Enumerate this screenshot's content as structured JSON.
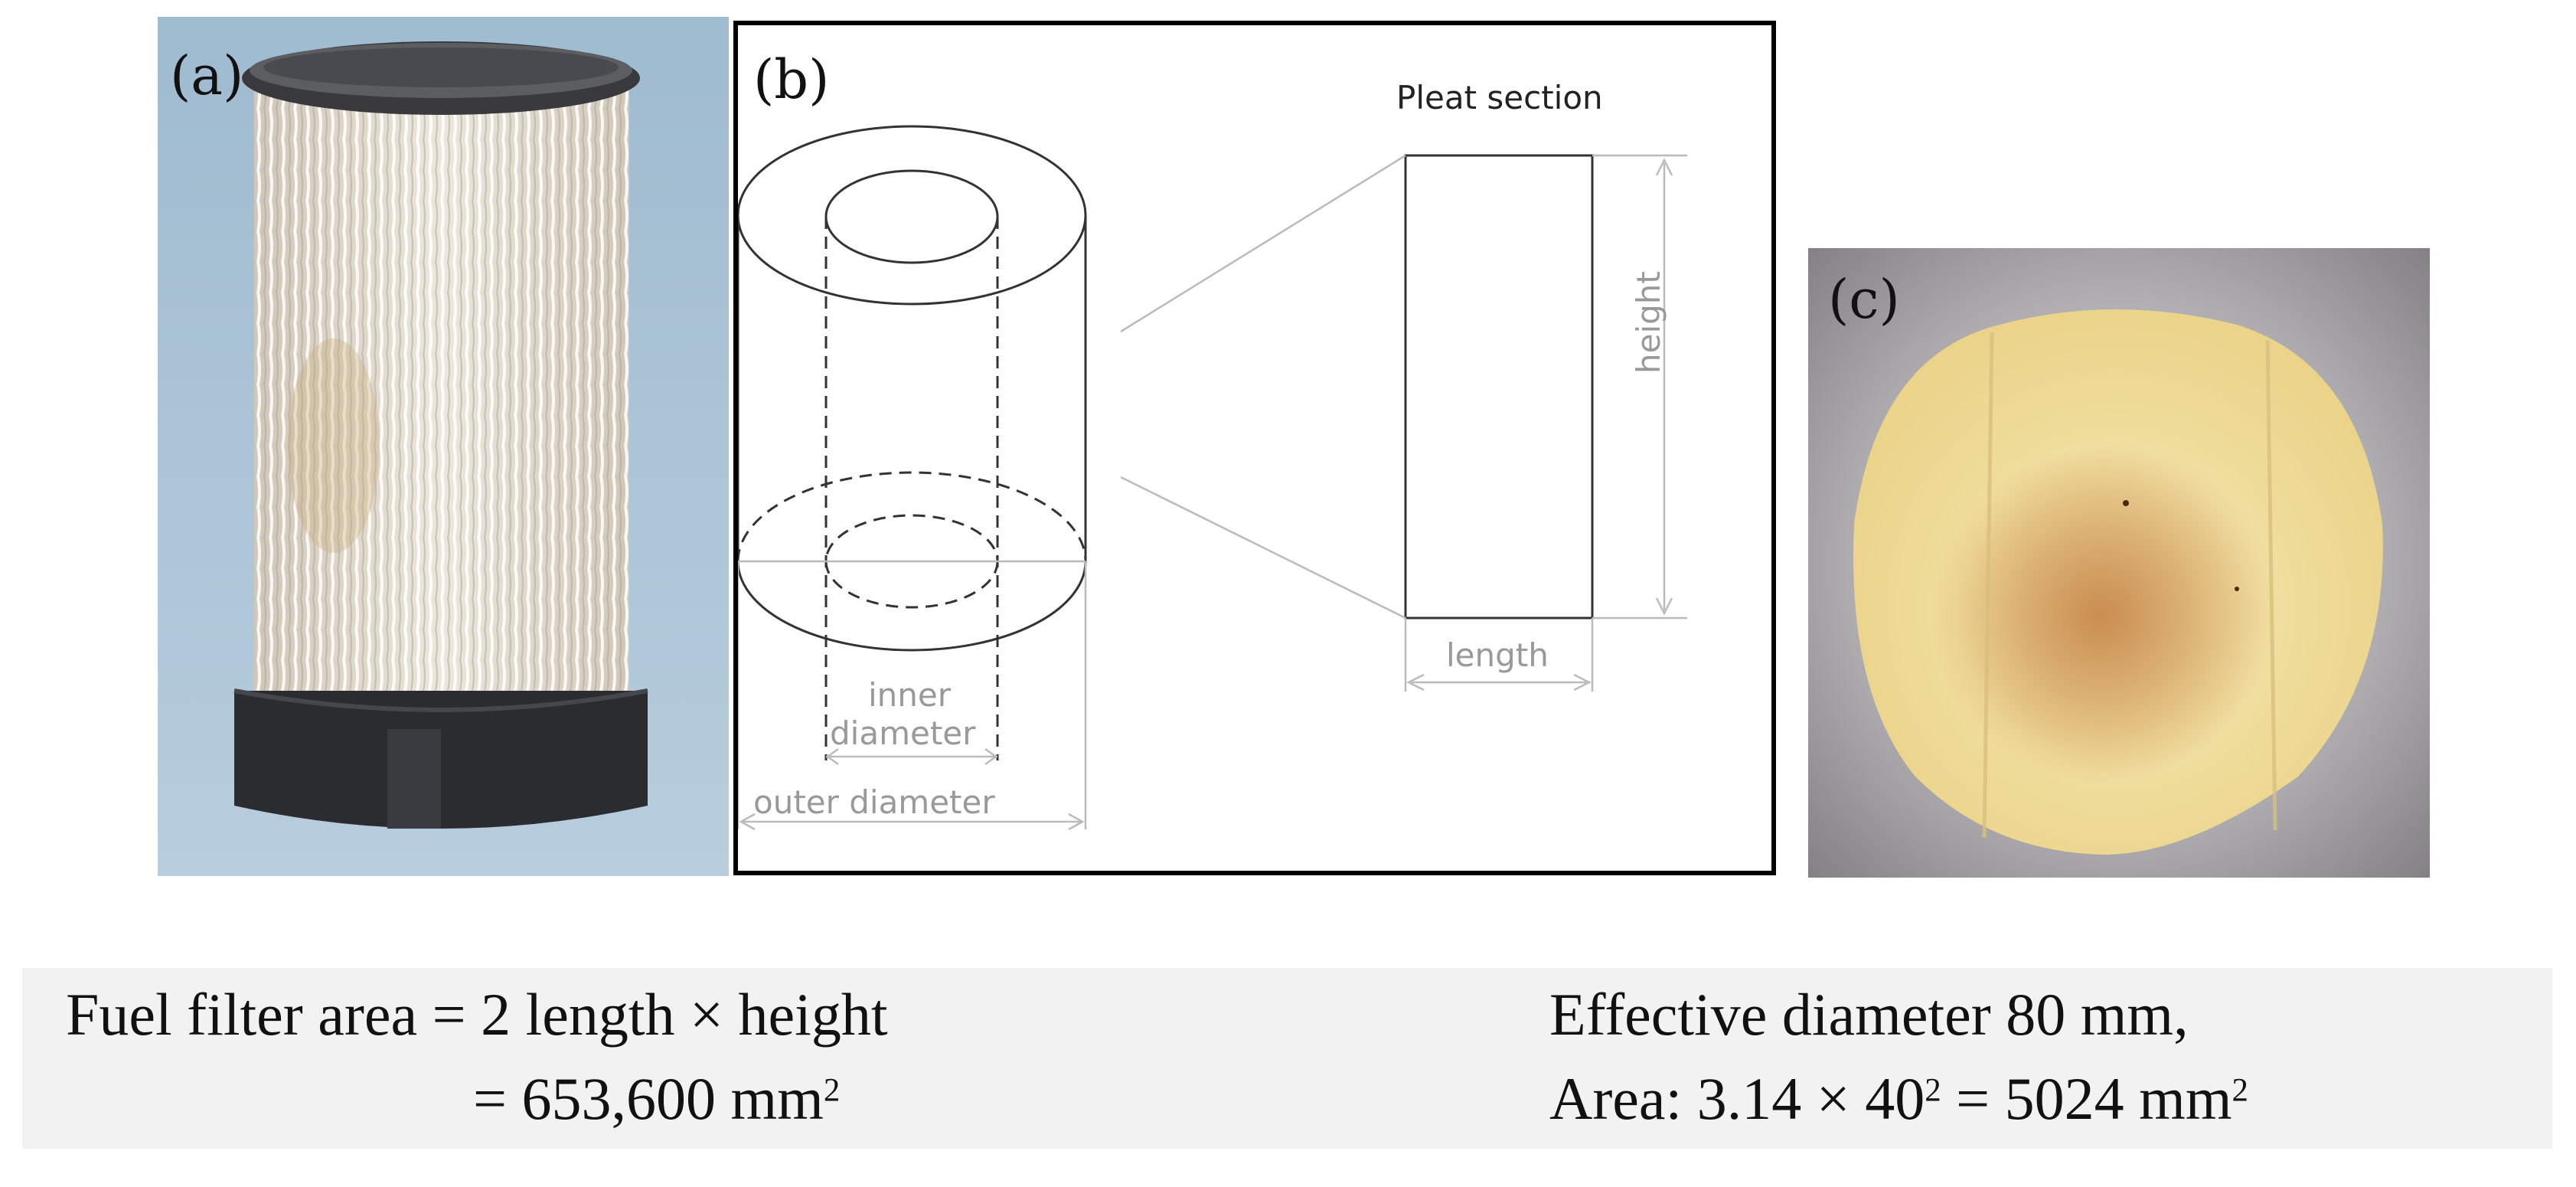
{
  "panels": {
    "a": {
      "label": "(a)"
    },
    "b": {
      "label": "(b)",
      "pleat_section_title": "Pleat section",
      "height_label": "height",
      "length_label": "length",
      "inner_diameter_label_line1": "inner",
      "inner_diameter_label_line2": "diameter",
      "outer_diameter_label": "outer diameter"
    },
    "c": {
      "label": "(c)"
    }
  },
  "formulas": {
    "left_line1": "Fuel filter area = 2 length × height",
    "left_line2_value": "= 653,600 mm",
    "left_line2_sup": "2",
    "right_line1": "Effective diameter 80 mm,",
    "right_line2_prefix": "Area: 3.14 × 40",
    "right_line2_sup1": "2",
    "right_line2_middle": " = 5024 mm",
    "right_line2_sup2": "2"
  }
}
